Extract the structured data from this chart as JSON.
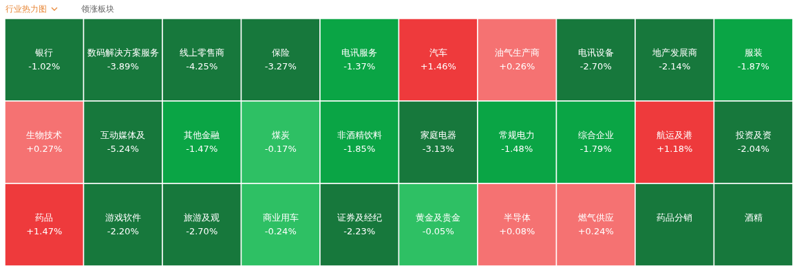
{
  "chart_data": {
    "type": "other",
    "annotations": [
      "行业热力图",
      "领涨板块"
    ],
    "categories": [
      "银行",
      "数码解决方案服务",
      "线上零售商",
      "保险",
      "电讯服务",
      "汽车",
      "油气生产商",
      "电讯设备",
      "地产发展商",
      "服装",
      "生物技术",
      "互动媒体及",
      "其他金融",
      "煤炭",
      "非酒精饮料",
      "家庭电器",
      "常规电力",
      "综合企业",
      "航运及港",
      "投资及资",
      "药品",
      "游戏软件",
      "旅游及观",
      "商业用车",
      "证券及经纪",
      "黄金及贵金",
      "半导体",
      "燃气供应",
      "药品分销",
      "酒精"
    ],
    "values": [
      -1.02,
      -3.89,
      -4.25,
      -3.27,
      -1.37,
      1.46,
      0.26,
      -2.7,
      -2.14,
      -1.87,
      0.27,
      -5.24,
      -1.47,
      -0.17,
      -1.85,
      -3.13,
      -1.48,
      -1.79,
      1.18,
      -2.04,
      1.47,
      -2.2,
      -2.7,
      -0.24,
      -2.23,
      -0.05,
      0.08,
      0.24,
      null,
      null
    ],
    "value_labels": [
      "-1.02%",
      "-3.89%",
      "-4.25%",
      "-3.27%",
      "-1.37%",
      "+1.46%",
      "+0.26%",
      "-2.70%",
      "-2.14%",
      "-1.87%",
      "+0.27%",
      "-5.24%",
      "-1.47%",
      "-0.17%",
      "-1.85%",
      "-3.13%",
      "-1.48%",
      "-1.79%",
      "+1.18%",
      "-2.04%",
      "+1.47%",
      "-2.20%",
      "-2.70%",
      "-0.24%",
      "-2.23%",
      "-0.05%",
      "+0.08%",
      "+0.24%",
      null,
      null
    ],
    "colors": [
      "#17783c",
      "#17783c",
      "#17783c",
      "#17783c",
      "#0aa545",
      "#ee3a3c",
      "#f57272",
      "#17783c",
      "#17783c",
      "#0aa545",
      "#f57272",
      "#17783c",
      "#0aa545",
      "#2ec064",
      "#0aa545",
      "#17783c",
      "#0aa545",
      "#0aa545",
      "#ee3a3c",
      "#17783c",
      "#ee3a3c",
      "#17783c",
      "#17783c",
      "#2ec064",
      "#17783c",
      "#2ec064",
      "#f57272",
      "#f57272",
      "#17783c",
      "#17783c"
    ]
  }
}
